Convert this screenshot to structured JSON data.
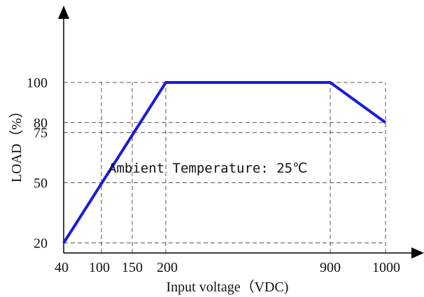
{
  "chart_data": {
    "type": "line",
    "xlabel": "Input voltage（VDC)",
    "ylabel": "LOAD（%）",
    "annotation": "Ambient Temperature: 25℃",
    "x_ticks": [
      40,
      100,
      150,
      200,
      900,
      1000
    ],
    "y_ticks": [
      20,
      50,
      75,
      80,
      100
    ],
    "x_tick_labels": [
      "40",
      "100",
      "150",
      "200",
      "900",
      "1000"
    ],
    "y_tick_labels": [
      "20",
      "50",
      "75",
      "80",
      "100"
    ],
    "series": [
      {
        "x": [
          40,
          200,
          900,
          1000
        ],
        "y": [
          20,
          100,
          100,
          80
        ]
      }
    ],
    "grid": true,
    "colors": {
      "series": "#1a1ae0"
    }
  }
}
